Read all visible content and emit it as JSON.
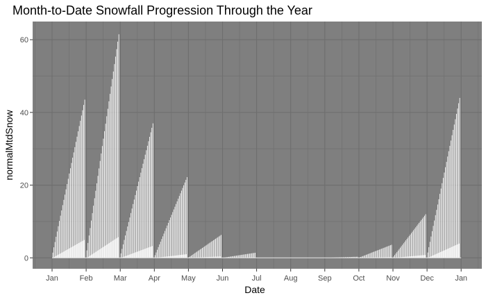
{
  "chart_data": {
    "type": "bar",
    "title": "Month-to-Date Snowfall Progression Through the Year",
    "xlabel": "Date",
    "ylabel": "normalMtdSnow",
    "x_ticks": [
      "Jan",
      "Feb",
      "Mar",
      "Apr",
      "May",
      "Jun",
      "Jul",
      "Aug",
      "Sep",
      "Oct",
      "Nov",
      "Dec",
      "Jan"
    ],
    "y_ticks": [
      0,
      20,
      40,
      60
    ],
    "ylim": [
      -3,
      65
    ],
    "grid": true,
    "legend": "none",
    "colors": {
      "panel": "#7f7f7f",
      "grid": "#6e6e6e",
      "bar": "#ffffff",
      "lower_band": "#d9d9d9"
    },
    "series": [
      {
        "values_description_free": true,
        "months": [
          {
            "month": "Jan",
            "end_max": 43.5,
            "end_low": 5.0
          },
          {
            "month": "Feb",
            "end_max": 61.5,
            "end_low": 5.8
          },
          {
            "month": "Mar",
            "end_max": 37.0,
            "end_low": 3.3
          },
          {
            "month": "Apr",
            "end_max": 22.2,
            "end_low": 1.0
          },
          {
            "month": "May",
            "end_max": 6.3,
            "end_low": 0.4
          },
          {
            "month": "Jun",
            "end_max": 1.4,
            "end_low": 0.1
          },
          {
            "month": "Jul",
            "end_max": 0.0,
            "end_low": 0.0
          },
          {
            "month": "Aug",
            "end_max": 0.0,
            "end_low": 0.0
          },
          {
            "month": "Sep",
            "end_max": 0.3,
            "end_low": 0.0
          },
          {
            "month": "Oct",
            "end_max": 3.6,
            "end_low": 0.2
          },
          {
            "month": "Nov",
            "end_max": 12.0,
            "end_low": 0.8
          },
          {
            "month": "Dec",
            "end_max": 44.0,
            "end_low": 4.0
          }
        ]
      }
    ]
  }
}
